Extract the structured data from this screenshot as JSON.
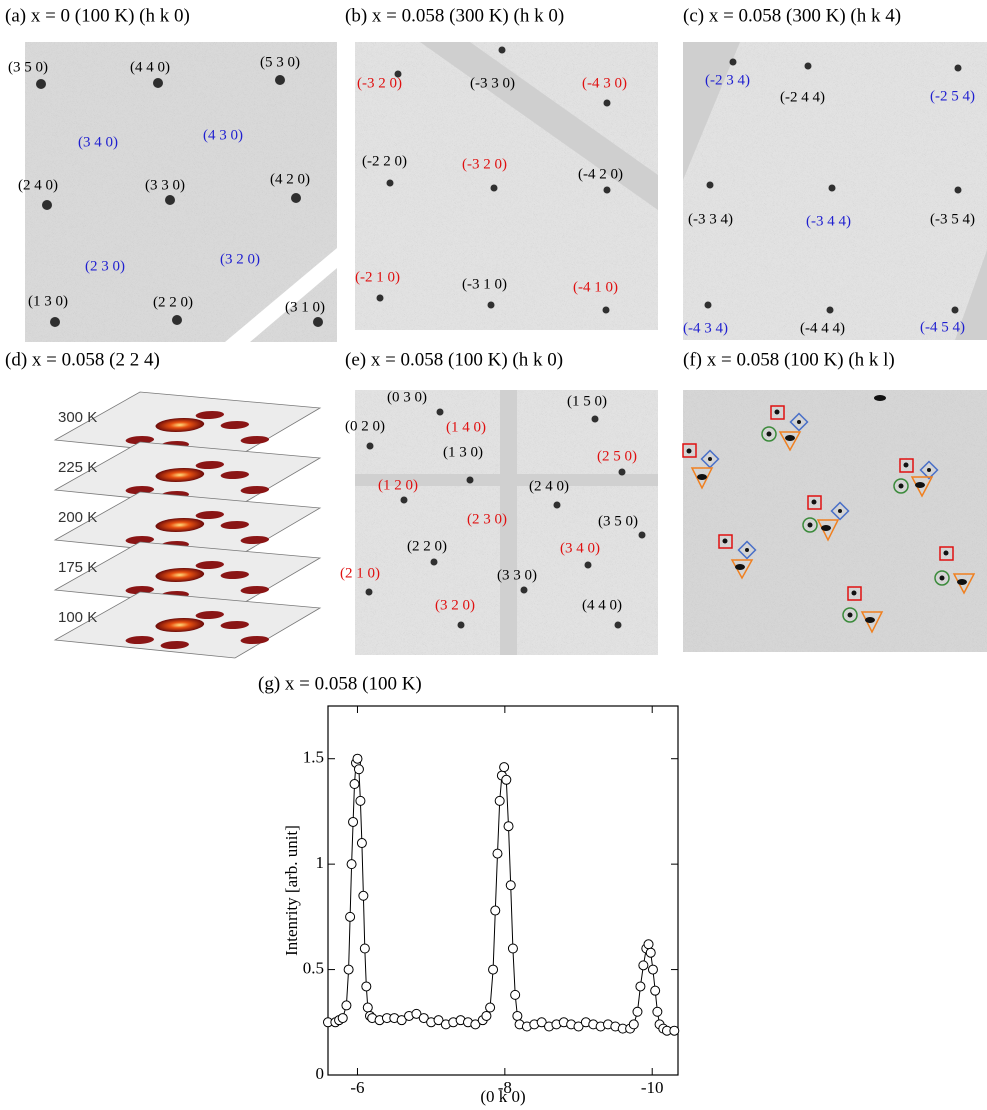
{
  "panels": [
    {
      "title": "(a)  x = 0 (100 K) (h k 0)",
      "labels": [
        {
          "text": "(3 5 0)",
          "color": "#000000"
        },
        {
          "text": "(4 4 0)",
          "color": "#000000"
        },
        {
          "text": "(5 3 0)",
          "color": "#000000"
        },
        {
          "text": "(3 4 0)",
          "color": "#1f1fd0"
        },
        {
          "text": "(4 3 0)",
          "color": "#1f1fd0"
        },
        {
          "text": "(2 4 0)",
          "color": "#000000"
        },
        {
          "text": "(3 3 0)",
          "color": "#000000"
        },
        {
          "text": "(4 2 0)",
          "color": "#000000"
        },
        {
          "text": "(2 3 0)",
          "color": "#1f1fd0"
        },
        {
          "text": "(3 2 0)",
          "color": "#1f1fd0"
        },
        {
          "text": "(1 3 0)",
          "color": "#000000"
        },
        {
          "text": "(2 2 0)",
          "color": "#000000"
        },
        {
          "text": "(3 1 0)",
          "color": "#000000"
        }
      ]
    },
    {
      "title": "(b)  x = 0.058 (300 K) (h k 0)",
      "labels": [
        {
          "text": "(-3 2 0)",
          "color": "#e01010"
        },
        {
          "text": "(-3 3 0)",
          "color": "#000000"
        },
        {
          "text": "(-4 3 0)",
          "color": "#e01010"
        },
        {
          "text": "(-2 2 0)",
          "color": "#000000"
        },
        {
          "text": "(-3 2 0)",
          "color": "#e01010"
        },
        {
          "text": "(-4 2 0)",
          "color": "#000000"
        },
        {
          "text": "(-2 1 0)",
          "color": "#e01010"
        },
        {
          "text": "(-3 1 0)",
          "color": "#000000"
        },
        {
          "text": "(-4 1 0)",
          "color": "#e01010"
        }
      ]
    },
    {
      "title": "(c)  x = 0.058 (300 K) (h k 4)",
      "labels": [
        {
          "text": "(-2 3 4)",
          "color": "#1f1fd0"
        },
        {
          "text": "(-2 4 4)",
          "color": "#000000"
        },
        {
          "text": "(-2 5 4)",
          "color": "#1f1fd0"
        },
        {
          "text": "(-3 3 4)",
          "color": "#000000"
        },
        {
          "text": "(-3 4 4)",
          "color": "#1f1fd0"
        },
        {
          "text": "(-3 5 4)",
          "color": "#000000"
        },
        {
          "text": "(-4 3 4)",
          "color": "#1f1fd0"
        },
        {
          "text": "(-4 4 4)",
          "color": "#000000"
        },
        {
          "text": "(-4 5 4)",
          "color": "#1f1fd0"
        }
      ]
    },
    {
      "title": "(d)  x = 0.058 (2 2 4)",
      "labels": [
        {
          "text": "300 K",
          "color": "#333333"
        },
        {
          "text": "225 K",
          "color": "#333333"
        },
        {
          "text": "200 K",
          "color": "#333333"
        },
        {
          "text": "175 K",
          "color": "#333333"
        },
        {
          "text": "100 K",
          "color": "#333333"
        }
      ]
    },
    {
      "title": "(e)  x = 0.058 (100 K) (h k 0)",
      "labels": [
        {
          "text": "(0 3 0)",
          "color": "#000000"
        },
        {
          "text": "(1 5 0)",
          "color": "#000000"
        },
        {
          "text": "(0 2 0)",
          "color": "#000000"
        },
        {
          "text": "(1 4 0)",
          "color": "#e01010"
        },
        {
          "text": "(1 3 0)",
          "color": "#000000"
        },
        {
          "text": "(2 5 0)",
          "color": "#e01010"
        },
        {
          "text": "(1 2 0)",
          "color": "#e01010"
        },
        {
          "text": "(2 4 0)",
          "color": "#000000"
        },
        {
          "text": "(2 3 0)",
          "color": "#e01010"
        },
        {
          "text": "(3 5 0)",
          "color": "#000000"
        },
        {
          "text": "(2 2 0)",
          "color": "#000000"
        },
        {
          "text": "(3 4 0)",
          "color": "#e01010"
        },
        {
          "text": "(2 1 0)",
          "color": "#e01010"
        },
        {
          "text": "(3 3 0)",
          "color": "#000000"
        },
        {
          "text": "(3 2 0)",
          "color": "#e01010"
        },
        {
          "text": "(4 4 0)",
          "color": "#000000"
        }
      ]
    },
    {
      "title": "(f)  x = 0.058 (100 K) (h k l)",
      "labels": []
    }
  ],
  "chart_data": {
    "type": "scatter",
    "title": "(g)  x = 0.058 (100 K)",
    "x_label": "(0 k 0)",
    "y_label": "Intenrity [arb. unit]",
    "x": [
      -5.6,
      -5.7,
      -5.75,
      -5.8,
      -5.85,
      -5.88,
      -5.9,
      -5.92,
      -5.94,
      -5.96,
      -5.98,
      -6.0,
      -6.02,
      -6.04,
      -6.06,
      -6.08,
      -6.1,
      -6.12,
      -6.14,
      -6.17,
      -6.2,
      -6.3,
      -6.4,
      -6.5,
      -6.6,
      -6.7,
      -6.8,
      -6.9,
      -7.0,
      -7.1,
      -7.2,
      -7.3,
      -7.4,
      -7.5,
      -7.6,
      -7.7,
      -7.75,
      -7.8,
      -7.84,
      -7.87,
      -7.9,
      -7.93,
      -7.96,
      -7.99,
      -8.02,
      -8.05,
      -8.08,
      -8.11,
      -8.14,
      -8.17,
      -8.2,
      -8.3,
      -8.4,
      -8.5,
      -8.6,
      -8.7,
      -8.8,
      -8.9,
      -9.0,
      -9.1,
      -9.2,
      -9.3,
      -9.4,
      -9.5,
      -9.6,
      -9.7,
      -9.75,
      -9.8,
      -9.84,
      -9.88,
      -9.92,
      -9.95,
      -9.98,
      -10.01,
      -10.04,
      -10.07,
      -10.1,
      -10.15,
      -10.2,
      -10.3
    ],
    "values": [
      0.25,
      0.25,
      0.26,
      0.27,
      0.33,
      0.5,
      0.75,
      1.0,
      1.2,
      1.38,
      1.48,
      1.5,
      1.45,
      1.3,
      1.1,
      0.85,
      0.6,
      0.42,
      0.32,
      0.28,
      0.27,
      0.26,
      0.27,
      0.27,
      0.26,
      0.28,
      0.29,
      0.27,
      0.25,
      0.26,
      0.24,
      0.25,
      0.26,
      0.25,
      0.24,
      0.26,
      0.28,
      0.32,
      0.5,
      0.78,
      1.05,
      1.3,
      1.42,
      1.46,
      1.4,
      1.18,
      0.9,
      0.6,
      0.38,
      0.28,
      0.24,
      0.23,
      0.24,
      0.25,
      0.23,
      0.24,
      0.25,
      0.24,
      0.23,
      0.25,
      0.24,
      0.23,
      0.24,
      0.23,
      0.22,
      0.22,
      0.24,
      0.3,
      0.42,
      0.52,
      0.6,
      0.62,
      0.58,
      0.5,
      0.4,
      0.3,
      0.24,
      0.22,
      0.21,
      0.21
    ],
    "xlim": [
      -5.6,
      -10.35
    ],
    "xticks": [
      -6,
      -8,
      -10
    ],
    "ylim": [
      0,
      1.75
    ],
    "yticks": [
      0,
      0.5,
      1,
      1.5
    ],
    "marker_color": "#ffffff",
    "line_color": "#000000"
  }
}
